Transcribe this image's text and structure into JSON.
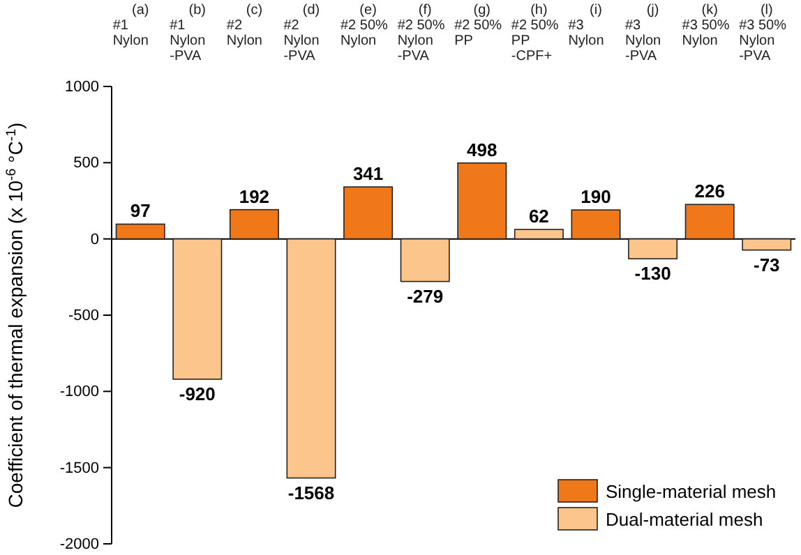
{
  "chart_data": {
    "type": "bar",
    "ylabel": "Coefficient of thermal expansion (x 10$^{-6}$ °C$^{-1}$)",
    "categories": [
      "(a)\n#1\nNylon",
      "(b)\n#1\nNylon\n-PVA",
      "(c)\n#2\nNylon",
      "(d)\n#2\nNylon\n-PVA",
      "(e)\n#2 50%\nNylon",
      "(f)\n#2 50%\nNylon\n-PVA",
      "(g)\n#2 50%\nPP",
      "(h)\n#2 50%\nPP\n-CPF+",
      "(i)\n#3\nNylon",
      "(j)\n#3\nNylon\n-PVA",
      "(k)\n#3 50%\nNylon",
      "(l)\n#3 50%\nNylon\n-PVA"
    ],
    "series": [
      {
        "name": "Single-material mesh",
        "color": "#f07818",
        "values": [
          97,
          null,
          192,
          null,
          341,
          null,
          498,
          null,
          190,
          null,
          226,
          null
        ]
      },
      {
        "name": "Dual-material mesh",
        "color": "#fcc58c",
        "values": [
          null,
          -920,
          null,
          -1568,
          null,
          -279,
          null,
          62,
          null,
          -130,
          null,
          -73
        ]
      }
    ],
    "ylim": [
      -2000,
      1000
    ],
    "yticks": [
      -2000,
      -1500,
      -1000,
      -500,
      0,
      500,
      1000
    ],
    "data_labels": true,
    "legend": "bottom right"
  }
}
